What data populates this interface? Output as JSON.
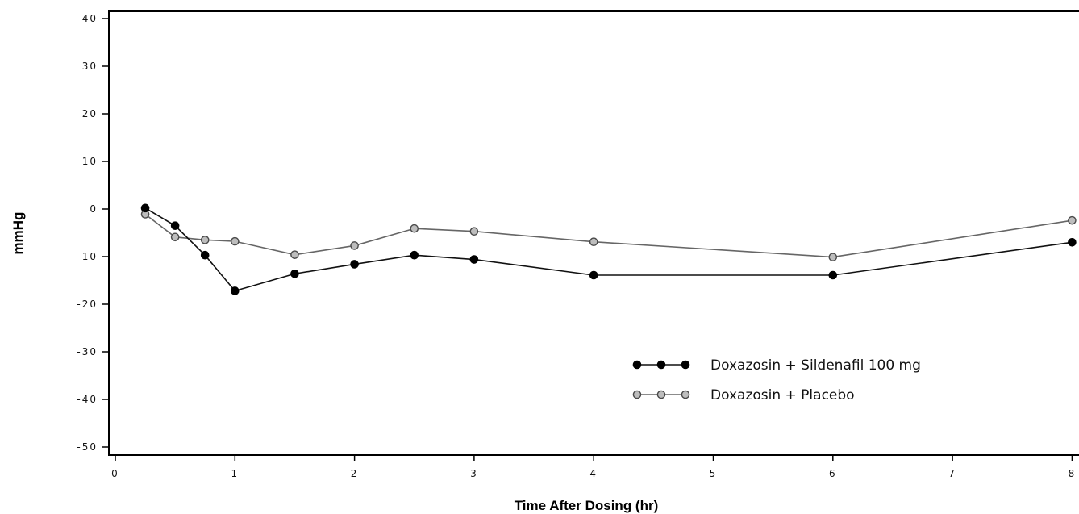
{
  "chart_data": {
    "type": "line",
    "title": "",
    "xlabel": "Time After Dosing (hr)",
    "ylabel": "mmHg",
    "xlim": [
      0,
      8
    ],
    "ylim": [
      -50,
      40
    ],
    "xticks": [
      0,
      1,
      2,
      3,
      4,
      5,
      6,
      7,
      8
    ],
    "yticks": [
      40,
      30,
      20,
      10,
      0,
      -10,
      -20,
      -30,
      -40,
      -50
    ],
    "xtick_labels": [
      "0",
      "1",
      "2",
      "3",
      "4",
      "5",
      "6",
      "7",
      "8"
    ],
    "ytick_labels": [
      "40",
      "30",
      "20",
      "10",
      "0",
      "-10",
      "-20",
      "-30",
      "-40",
      "-50"
    ],
    "grid": false,
    "legend_position": "bottom-right",
    "series": [
      {
        "name": "Doxazosin + Sildenafil 100 mg",
        "color": "#000000",
        "marker": "filled-circle",
        "x": [
          0.25,
          0.5,
          0.75,
          1,
          1.5,
          2,
          2.5,
          3,
          4,
          6,
          8
        ],
        "y": [
          0.2,
          -3.5,
          -9.7,
          -17.2,
          -13.6,
          -11.6,
          -9.7,
          -10.6,
          -13.9,
          -13.9,
          -7.0
        ]
      },
      {
        "name": "Doxazosin + Placebo",
        "color": "#555555",
        "marker": "open-circle",
        "x": [
          0.25,
          0.5,
          0.75,
          1,
          1.5,
          2,
          2.5,
          3,
          4,
          6,
          8
        ],
        "y": [
          -1.1,
          -5.9,
          -6.5,
          -6.8,
          -9.6,
          -7.7,
          -4.1,
          -4.7,
          -6.9,
          -10.1,
          -2.4
        ]
      }
    ]
  }
}
